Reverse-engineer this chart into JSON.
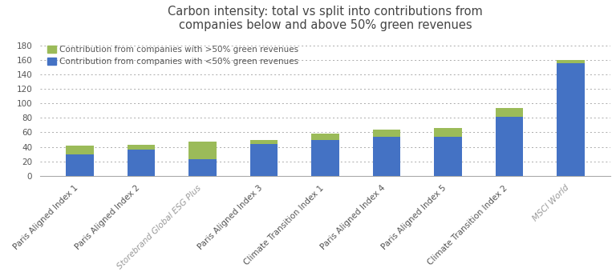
{
  "title": "Carbon intensity: total vs split into contributions from\ncompanies below and above 50% green revenues",
  "categories": [
    "Paris Aligned Index 1",
    "Paris Aligned Index 2",
    "Storebrand Global ESG Plus",
    "Paris Aligned Index 3",
    "Climate Transition Index 1",
    "Paris Aligned Index 4",
    "Paris Aligned Index 5",
    "Climate Transition Index 2",
    "MSCI World"
  ],
  "blue_values": [
    30,
    36,
    23,
    44,
    50,
    54,
    54,
    81,
    155
  ],
  "green_values": [
    12,
    7,
    24,
    6,
    8,
    10,
    12,
    13,
    5
  ],
  "bar_color_blue": "#4472C4",
  "bar_color_green": "#9BBB59",
  "legend_labels": [
    "Contribution from companies with >50% green revenues",
    "Contribution from companies with <50% green revenues"
  ],
  "ylim": [
    0,
    190
  ],
  "yticks": [
    0,
    20,
    40,
    60,
    80,
    100,
    120,
    140,
    160,
    180
  ],
  "title_fontsize": 10.5,
  "tick_label_fontsize": 7.5,
  "legend_fontsize": 7.5,
  "background_color": "#ffffff",
  "special_label_color": "#999999"
}
